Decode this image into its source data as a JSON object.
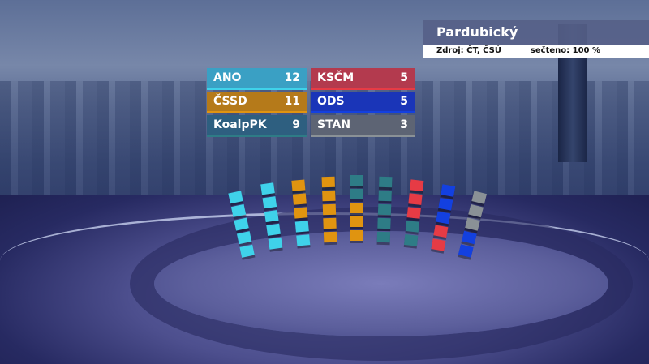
{
  "header": {
    "region": "Pardubický",
    "source": "Zdroj: ČT, ČSÚ",
    "counted": "sečteno: 100 %"
  },
  "chart_data": {
    "type": "bar",
    "categories": [
      "ANO",
      "ČSSD",
      "KoalpPK",
      "KSČM",
      "ODS",
      "STAN"
    ],
    "values": [
      12,
      11,
      9,
      5,
      5,
      3
    ],
    "colors": [
      "#3fd2ea",
      "#e09410",
      "#2e7c86",
      "#e63b45",
      "#1340e0",
      "#8a9196"
    ],
    "label_colors": [
      "#3aa0c4",
      "#b57a1a",
      "#2e5f80",
      "#b33a4e",
      "#1a35b8",
      "#5d6474"
    ],
    "seats_per_column": 5
  }
}
